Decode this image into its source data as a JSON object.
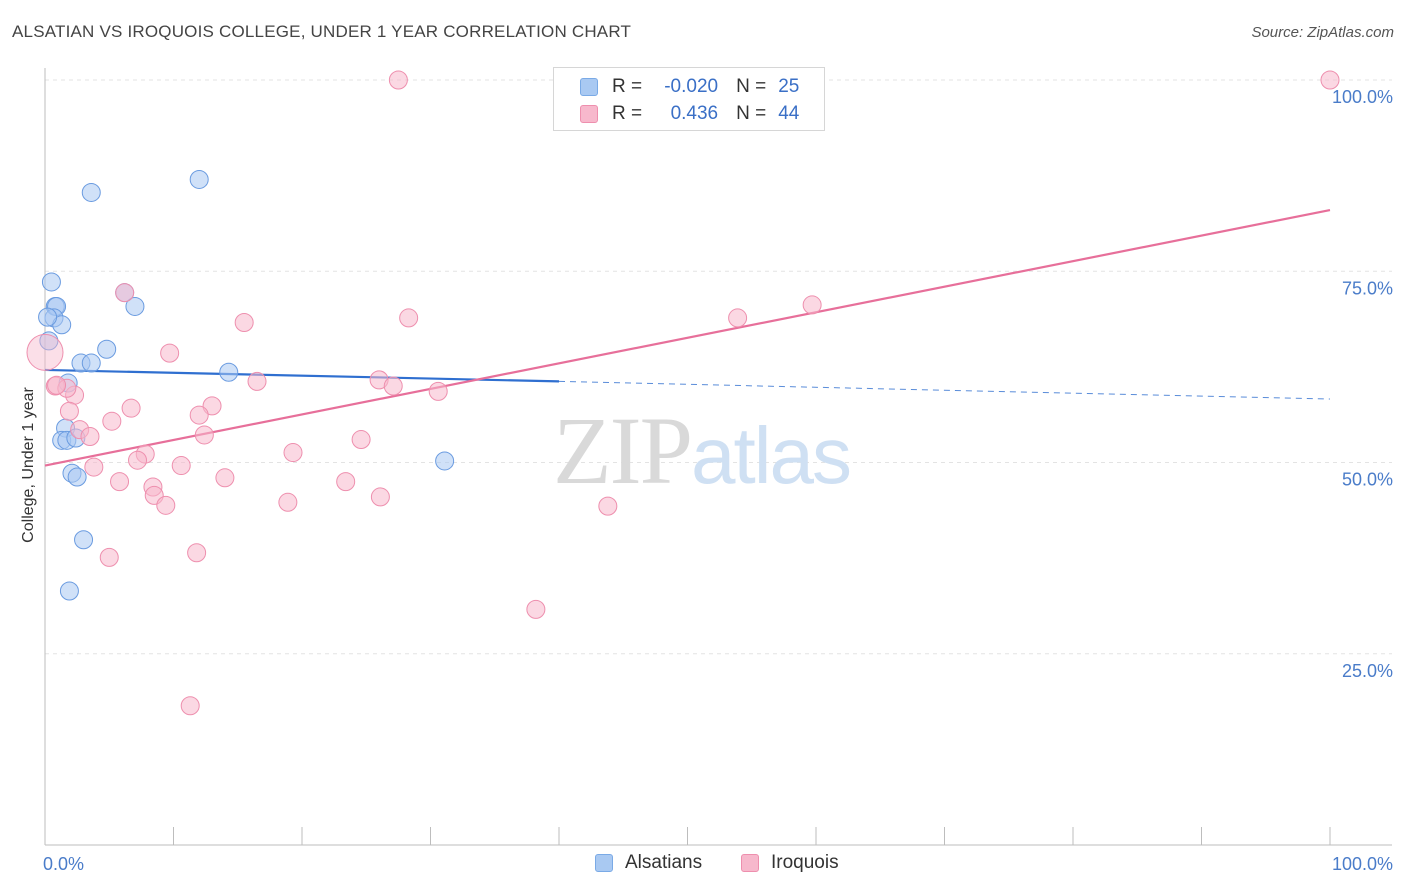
{
  "title": "ALSATIAN VS IROQUOIS COLLEGE, UNDER 1 YEAR CORRELATION CHART",
  "source": "Source: ZipAtlas.com",
  "watermark": {
    "zip": "ZIP",
    "atlas": "atlas"
  },
  "legend": {
    "rows": [
      {
        "r_label": "R =",
        "r_value": "-0.020",
        "n_label": "N =",
        "n_value": "25",
        "color": "#a9c9f2",
        "border": "#7aaae6"
      },
      {
        "r_label": "R =",
        "r_value": "0.436",
        "n_label": "N =",
        "n_value": "44",
        "color": "#f7b8cc",
        "border": "#ee8fae"
      }
    ]
  },
  "bottom_legend": [
    {
      "label": "Alsatians",
      "color": "#a9c9f2",
      "border": "#7aaae6"
    },
    {
      "label": "Iroquois",
      "color": "#f7b8cc",
      "border": "#ee8fae"
    }
  ],
  "chart_data": {
    "type": "scatter",
    "title": "ALSATIAN VS IROQUOIS COLLEGE, UNDER 1 YEAR CORRELATION CHART",
    "xlabel": "",
    "ylabel": "College, Under 1 year",
    "xlim": [
      0,
      100
    ],
    "ylim": [
      0,
      100
    ],
    "x_tick_labels": [
      "0.0%",
      "100.0%"
    ],
    "y_ticks": [
      25,
      50,
      75,
      100
    ],
    "y_tick_labels": [
      "25.0%",
      "50.0%",
      "75.0%",
      "100.0%"
    ],
    "grid": true,
    "series": [
      {
        "name": "Alsatians",
        "color": "#6a9be0",
        "fill": "#a9c9f2",
        "line_color": "#2f6fd0",
        "points": [
          [
            3.6,
            85.3
          ],
          [
            12.0,
            87.0
          ],
          [
            0.5,
            73.6
          ],
          [
            0.8,
            70.4
          ],
          [
            0.9,
            70.4
          ],
          [
            0.7,
            68.9
          ],
          [
            1.3,
            68.0
          ],
          [
            6.2,
            72.2
          ],
          [
            7.0,
            70.4
          ],
          [
            0.3,
            65.9
          ],
          [
            4.8,
            64.8
          ],
          [
            2.8,
            63.0
          ],
          [
            3.6,
            63.0
          ],
          [
            14.3,
            61.8
          ],
          [
            1.8,
            60.4
          ],
          [
            1.6,
            54.5
          ],
          [
            1.3,
            52.9
          ],
          [
            1.7,
            52.9
          ],
          [
            2.4,
            53.2
          ],
          [
            31.1,
            50.2
          ],
          [
            2.1,
            48.6
          ],
          [
            2.5,
            48.1
          ],
          [
            3.0,
            39.9
          ],
          [
            1.9,
            33.2
          ],
          [
            0.2,
            69.0
          ]
        ],
        "trend_solid": [
          [
            0,
            62.1
          ],
          [
            40,
            60.6
          ]
        ],
        "trend_dashed": [
          [
            40,
            60.6
          ],
          [
            100,
            58.3
          ]
        ]
      },
      {
        "name": "Iroquois",
        "color": "#ee8fae",
        "fill": "#f7b8cc",
        "line_color": "#e76f9a",
        "points": [
          [
            27.5,
            100.0
          ],
          [
            100.0,
            100.0
          ],
          [
            6.2,
            72.2
          ],
          [
            15.5,
            68.3
          ],
          [
            28.3,
            68.9
          ],
          [
            53.9,
            68.9
          ],
          [
            59.7,
            70.6
          ],
          [
            9.7,
            64.3
          ],
          [
            0.0,
            64.4
          ],
          [
            0.8,
            60.0
          ],
          [
            16.5,
            60.6
          ],
          [
            26.0,
            60.8
          ],
          [
            27.1,
            60.0
          ],
          [
            30.6,
            59.3
          ],
          [
            2.3,
            58.8
          ],
          [
            1.7,
            59.7
          ],
          [
            1.9,
            56.7
          ],
          [
            6.7,
            57.1
          ],
          [
            13.0,
            57.4
          ],
          [
            12.0,
            56.2
          ],
          [
            2.7,
            54.3
          ],
          [
            3.5,
            53.4
          ],
          [
            5.2,
            55.4
          ],
          [
            12.4,
            53.6
          ],
          [
            24.6,
            53.0
          ],
          [
            7.8,
            51.1
          ],
          [
            19.3,
            51.3
          ],
          [
            7.2,
            50.3
          ],
          [
            3.8,
            49.4
          ],
          [
            10.6,
            49.6
          ],
          [
            14.0,
            48.0
          ],
          [
            5.8,
            47.5
          ],
          [
            23.4,
            47.5
          ],
          [
            8.4,
            46.8
          ],
          [
            8.5,
            45.7
          ],
          [
            26.1,
            45.5
          ],
          [
            9.4,
            44.4
          ],
          [
            18.9,
            44.8
          ],
          [
            43.8,
            44.3
          ],
          [
            5.0,
            37.6
          ],
          [
            11.8,
            38.2
          ],
          [
            38.2,
            30.8
          ],
          [
            11.3,
            18.2
          ],
          [
            0.9,
            60.1
          ]
        ],
        "trend_solid": [
          [
            0,
            49.6
          ],
          [
            100,
            83.0
          ]
        ]
      }
    ]
  }
}
